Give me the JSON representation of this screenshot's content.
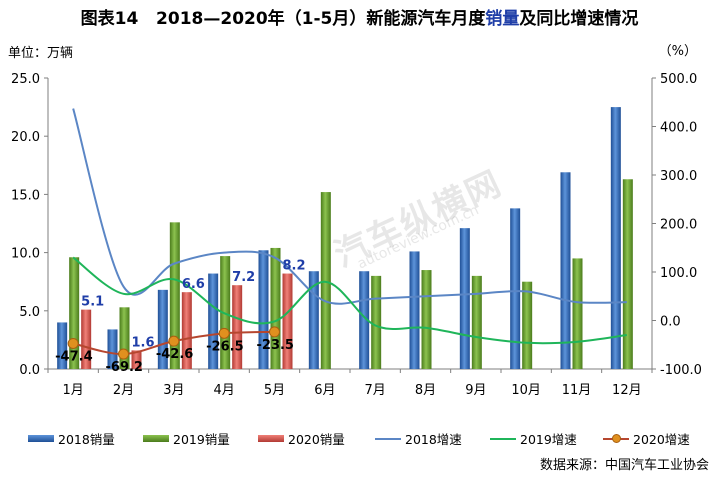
{
  "header": {
    "fig_label": "图表14",
    "title_before": "2018—2020年（1-5月）新能源汽车月度",
    "title_highlight": "销量",
    "title_after": "及同比增速情况"
  },
  "unit_left": "单位：万辆",
  "unit_right": "（%）",
  "source": "数据来源：中国汽车工业协会",
  "watermark": {
    "main": "汽车纵横网",
    "sub": "autoreview.com.cn"
  },
  "colors": {
    "bar_2018": "#2e6fc4",
    "bar_2019": "#6aa12b",
    "bar_2020": "#d9574f",
    "line_2018": "#5b86c5",
    "line_2019": "#1fb55a",
    "line_2020": "#b6462f",
    "marker_2020": "#e0901f",
    "label_2020_value": "#1f3ea8",
    "label_2020_growth": "#000000",
    "axis": "#7f7f7f"
  },
  "chart_data": {
    "type": "bar",
    "categories": [
      "1月",
      "2月",
      "3月",
      "4月",
      "5月",
      "6月",
      "7月",
      "8月",
      "9月",
      "10月",
      "11月",
      "12月"
    ],
    "series": [
      {
        "name": "2018销量",
        "type": "bar",
        "axis": "left",
        "values": [
          4.0,
          3.4,
          6.8,
          8.2,
          10.2,
          8.4,
          8.4,
          10.1,
          12.1,
          13.8,
          16.9,
          22.5
        ]
      },
      {
        "name": "2019销量",
        "type": "bar",
        "axis": "left",
        "values": [
          9.6,
          5.3,
          12.6,
          9.7,
          10.4,
          15.2,
          8.0,
          8.5,
          8.0,
          7.5,
          9.5,
          16.3
        ]
      },
      {
        "name": "2020销量",
        "type": "bar",
        "axis": "left",
        "values": [
          5.1,
          1.6,
          6.6,
          7.2,
          8.2,
          null,
          null,
          null,
          null,
          null,
          null,
          null
        ]
      },
      {
        "name": "2018增速",
        "type": "line",
        "axis": "right",
        "values": [
          437,
          70,
          117,
          140,
          130,
          40,
          45,
          50,
          55,
          60,
          38,
          38
        ]
      },
      {
        "name": "2019增速",
        "type": "line",
        "axis": "right",
        "values": [
          130,
          55,
          85,
          15,
          -2,
          80,
          -10,
          -15,
          -34,
          -46,
          -44,
          -30
        ]
      },
      {
        "name": "2020增速",
        "type": "line",
        "axis": "right",
        "values": [
          -47.4,
          -69.2,
          -42.6,
          -26.5,
          -23.5,
          null,
          null,
          null,
          null,
          null,
          null,
          null
        ]
      }
    ],
    "bar_labels_2020": [
      "5.1",
      "1.6",
      "6.6",
      "7.2",
      "8.2"
    ],
    "growth_labels_2020": [
      "-47.4",
      "-69.2",
      "-42.6",
      "-26.5",
      "-23.5"
    ],
    "y_left": {
      "lim": [
        0,
        25
      ],
      "ticks": [
        "0.0",
        "5.0",
        "10.0",
        "15.0",
        "20.0",
        "25.0"
      ]
    },
    "y_right": {
      "lim": [
        -100,
        500
      ],
      "ticks": [
        "-100.0",
        "0.0",
        "100.0",
        "200.0",
        "300.0",
        "400.0",
        "500.0"
      ]
    },
    "legend_position": "bottom",
    "grid": false
  }
}
